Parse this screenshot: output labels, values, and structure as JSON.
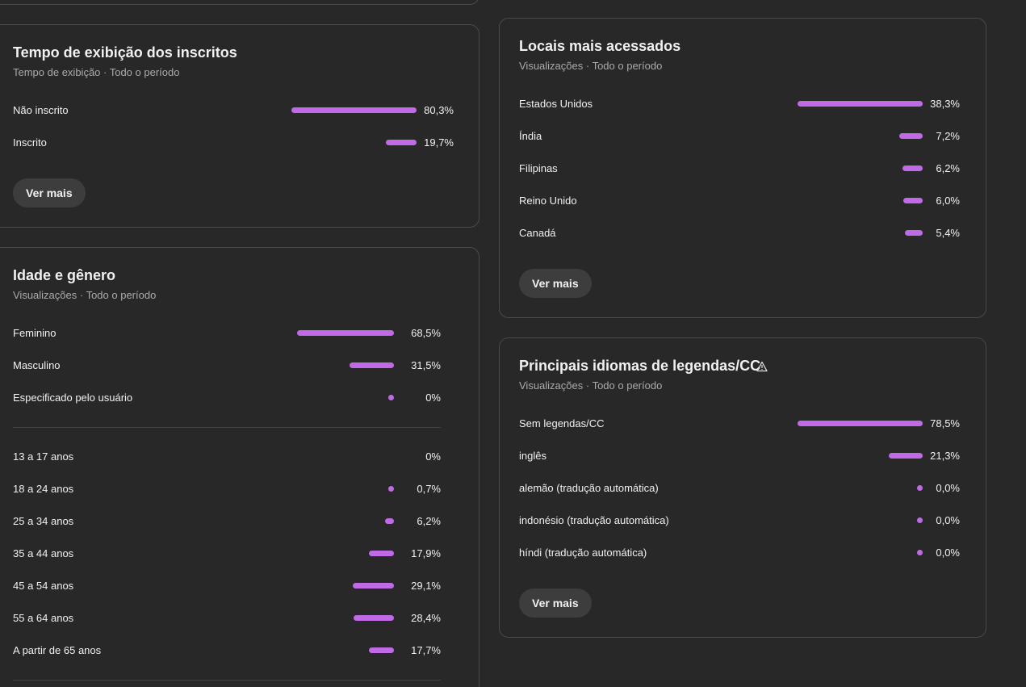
{
  "subscribers_watch_time": {
    "title": "Tempo de exibição dos inscritos",
    "subtitle": "Tempo de exibição · Todo o período",
    "rows": [
      {
        "label": "Não inscrito",
        "value": "80,3%",
        "fraction": 0.803
      },
      {
        "label": "Inscrito",
        "value": "19,7%",
        "fraction": 0.197
      }
    ],
    "more_label": "Ver mais"
  },
  "age_gender": {
    "title": "Idade e gênero",
    "subtitle": "Visualizações · Todo o período",
    "gender_rows": [
      {
        "label": "Feminino",
        "value": "68,5%",
        "fraction": 0.685
      },
      {
        "label": "Masculino",
        "value": "31,5%",
        "fraction": 0.315
      },
      {
        "label": "Especificado pelo usuário",
        "value": "0%",
        "fraction": 0.0
      }
    ],
    "age_rows": [
      {
        "label": "13 a 17 anos",
        "value": "0%",
        "fraction": 0.0,
        "show_mark": false
      },
      {
        "label": "18 a 24 anos",
        "value": "0,7%",
        "fraction": 0.007,
        "show_mark": true
      },
      {
        "label": "25 a 34 anos",
        "value": "6,2%",
        "fraction": 0.062,
        "show_mark": true
      },
      {
        "label": "35 a 44 anos",
        "value": "17,9%",
        "fraction": 0.179,
        "show_mark": true
      },
      {
        "label": "45 a 54 anos",
        "value": "29,1%",
        "fraction": 0.291,
        "show_mark": true
      },
      {
        "label": "55 a 64 anos",
        "value": "28,4%",
        "fraction": 0.284,
        "show_mark": true
      },
      {
        "label": "A partir de 65 anos",
        "value": "17,7%",
        "fraction": 0.177,
        "show_mark": true
      }
    ]
  },
  "top_locations": {
    "title": "Locais mais acessados",
    "subtitle": "Visualizações · Todo o período",
    "rows": [
      {
        "label": "Estados Unidos",
        "value": "38,3%",
        "fraction": 0.383
      },
      {
        "label": "Índia",
        "value": "7,2%",
        "fraction": 0.072
      },
      {
        "label": "Filipinas",
        "value": "6,2%",
        "fraction": 0.062
      },
      {
        "label": "Reino Unido",
        "value": "6,0%",
        "fraction": 0.06
      },
      {
        "label": "Canadá",
        "value": "5,4%",
        "fraction": 0.054
      }
    ],
    "more_label": "Ver mais"
  },
  "caption_languages": {
    "title": "Principais idiomas de legendas/CC",
    "warning_icon": "warning-triangle-icon",
    "subtitle": "Visualizações · Todo o período",
    "rows": [
      {
        "label": "Sem legendas/CC",
        "value": "78,5%",
        "fraction": 0.785
      },
      {
        "label": "inglês",
        "value": "21,3%",
        "fraction": 0.213
      },
      {
        "label": "alemão (tradução automática)",
        "value": "0,0%",
        "fraction": 0.0
      },
      {
        "label": "indonésio (tradução automática)",
        "value": "0,0%",
        "fraction": 0.0
      },
      {
        "label": "híndi (tradução automática)",
        "value": "0,0%",
        "fraction": 0.0
      }
    ],
    "more_label": "Ver mais"
  },
  "colors": {
    "background": "#282828",
    "card_border": "#4a4a4a",
    "bar": "#c06ae8",
    "button": "#3d3d3d",
    "subtitle": "#aaaaaa"
  }
}
